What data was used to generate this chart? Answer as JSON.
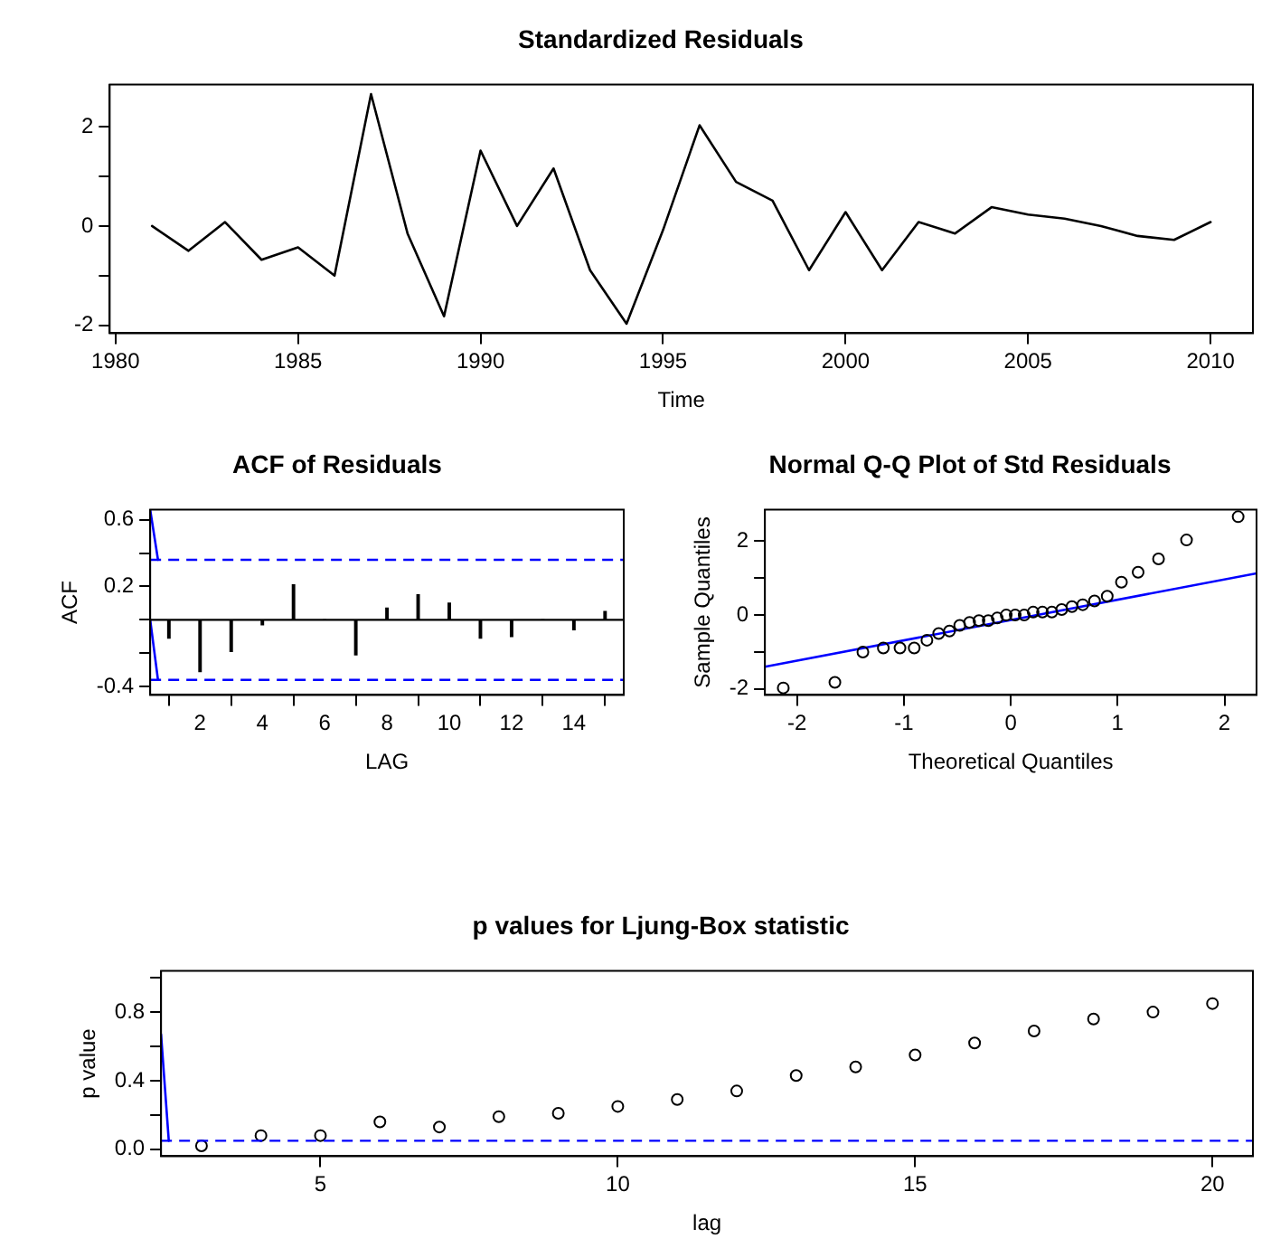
{
  "chart_data": [
    {
      "type": "line",
      "title": "Standardized Residuals",
      "xlabel": "Time",
      "marker": "none",
      "grid": false,
      "legend": false,
      "xlim": [
        1979.84,
        2011.16
      ],
      "ylim": [
        -2.16,
        2.85
      ],
      "xticks": [
        1980,
        1985,
        1990,
        1995,
        2000,
        2005,
        2010
      ],
      "yticks": [
        -2,
        {
          "value": -1,
          "label": null
        },
        0,
        {
          "value": 1,
          "label": null
        },
        2
      ],
      "series": [
        {
          "color": "#000000",
          "x": [
            1981,
            1982,
            1983,
            1984,
            1985,
            1986,
            1987,
            1988,
            1989,
            1990,
            1991,
            1992,
            1993,
            1994,
            1995,
            1996,
            1997,
            1998,
            1999,
            2000,
            2001,
            2002,
            2003,
            2004,
            2005,
            2006,
            2007,
            2008,
            2009,
            2010
          ],
          "values": [
            0,
            -0.5,
            0.08,
            -0.68,
            -0.43,
            -1.0,
            2.66,
            -0.15,
            -1.82,
            1.52,
            0,
            1.16,
            -0.89,
            -1.97,
            -0.08,
            2.03,
            0.89,
            0.51,
            -0.89,
            0.28,
            -0.89,
            0.08,
            -0.15,
            0.38,
            0.23,
            0.15,
            0,
            -0.2,
            -0.28,
            0.08
          ]
        }
      ]
    },
    {
      "type": "bar",
      "title": "ACF of Residuals",
      "xlabel": "LAG",
      "ylabel": "ACF",
      "grid": false,
      "legend": false,
      "xlim": [
        0.4,
        15.6
      ],
      "ylim": [
        -0.45,
        0.66
      ],
      "xticks": [
        2,
        4,
        6,
        8,
        10,
        12,
        14
      ],
      "yticks": [
        -0.4,
        {
          "value": -0.2,
          "label": null
        },
        {
          "value": 0,
          "label": null
        },
        0.2,
        {
          "value": 0.4,
          "label": null
        },
        0.6
      ],
      "ref_lines": [
        {
          "axis": "y",
          "value": 0,
          "color": "#000000",
          "line_style": "solid"
        },
        {
          "axis": "y",
          "value": 0.36,
          "color": "#0000ff",
          "line_style": "dashed"
        },
        {
          "axis": "y",
          "value": -0.36,
          "color": "#0000ff",
          "line_style": "dashed"
        }
      ],
      "series": [
        {
          "color": "#000000",
          "x": [
            1,
            2,
            3,
            4,
            5,
            6,
            7,
            8,
            9,
            10,
            11,
            12,
            13,
            14,
            15
          ],
          "values": [
            -0.11,
            -0.31,
            -0.19,
            -0.03,
            0.21,
            0.0,
            -0.21,
            0.07,
            0.15,
            0.1,
            -0.11,
            -0.1,
            0.0,
            -0.06,
            0.05
          ]
        },
        {
          "type": "line",
          "color": "#0000ff",
          "line_style": "solid",
          "marker": "none",
          "x": [
            0.4,
            0.65
          ],
          "values": [
            0.66,
            0.36
          ]
        },
        {
          "type": "line",
          "color": "#0000ff",
          "line_style": "solid",
          "marker": "none",
          "x": [
            0.4,
            0.65
          ],
          "values": [
            0,
            -0.36
          ]
        }
      ]
    },
    {
      "type": "scatter",
      "title": "Normal Q-Q Plot of Std Residuals",
      "xlabel": "Theoretical Quantiles",
      "ylabel": "Sample Quantiles",
      "marker": "circle",
      "grid": false,
      "legend": false,
      "xlim": [
        -2.3,
        2.3
      ],
      "ylim": [
        -2.16,
        2.85
      ],
      "xticks": [
        -2,
        -1,
        0,
        1,
        2
      ],
      "yticks": [
        -2,
        {
          "value": -1,
          "label": null
        },
        0,
        {
          "value": 1,
          "label": null
        },
        2
      ],
      "series": [
        {
          "color": "#000000",
          "x": [
            -2.128,
            -1.645,
            -1.383,
            -1.192,
            -1.036,
            -0.903,
            -0.784,
            -0.674,
            -0.573,
            -0.477,
            -0.385,
            -0.297,
            -0.21,
            -0.126,
            -0.042,
            0.042,
            0.126,
            0.21,
            0.297,
            0.385,
            0.477,
            0.573,
            0.674,
            0.784,
            0.903,
            1.036,
            1.192,
            1.383,
            1.645,
            2.128
          ],
          "values": [
            -1.97,
            -1.82,
            -1.0,
            -0.89,
            -0.89,
            -0.89,
            -0.68,
            -0.5,
            -0.43,
            -0.28,
            -0.2,
            -0.15,
            -0.15,
            -0.08,
            0,
            0,
            0,
            0.08,
            0.08,
            0.08,
            0.15,
            0.23,
            0.28,
            0.38,
            0.51,
            0.89,
            1.16,
            1.52,
            2.03,
            2.66
          ]
        },
        {
          "type": "line",
          "color": "#0000ff",
          "line_style": "solid",
          "marker": "none",
          "x": [
            -2.3,
            2.3
          ],
          "values": [
            -1.4,
            1.13
          ]
        }
      ]
    },
    {
      "type": "scatter",
      "title": "p values for Ljung-Box statistic",
      "xlabel": "lag",
      "ylabel": "p value",
      "marker": "circle",
      "grid": false,
      "legend": false,
      "xlim": [
        2.32,
        20.68
      ],
      "ylim": [
        -0.04,
        1.04
      ],
      "xticks": [
        5,
        10,
        15,
        20
      ],
      "yticks": [
        {
          "value": 0,
          "label": "0.0"
        },
        {
          "value": 0.2,
          "label": null
        },
        0.4,
        {
          "value": 0.6,
          "label": null
        },
        0.8,
        {
          "value": 1,
          "label": null
        }
      ],
      "ref_lines": [
        {
          "axis": "y",
          "value": 0.05,
          "color": "#0000ff",
          "line_style": "dashed"
        }
      ],
      "series": [
        {
          "color": "#000000",
          "x": [
            3,
            4,
            5,
            6,
            7,
            8,
            9,
            10,
            11,
            12,
            13,
            14,
            15,
            16,
            17,
            18,
            19,
            20
          ],
          "values": [
            0.02,
            0.08,
            0.08,
            0.16,
            0.13,
            0.19,
            0.21,
            0.25,
            0.29,
            0.34,
            0.43,
            0.48,
            0.55,
            0.62,
            0.69,
            0.76,
            0.8,
            0.85
          ]
        },
        {
          "type": "line",
          "color": "#0000ff",
          "line_style": "solid",
          "marker": "none",
          "x": [
            2.32,
            2.45
          ],
          "values": [
            0.67,
            0.05
          ]
        }
      ]
    }
  ]
}
